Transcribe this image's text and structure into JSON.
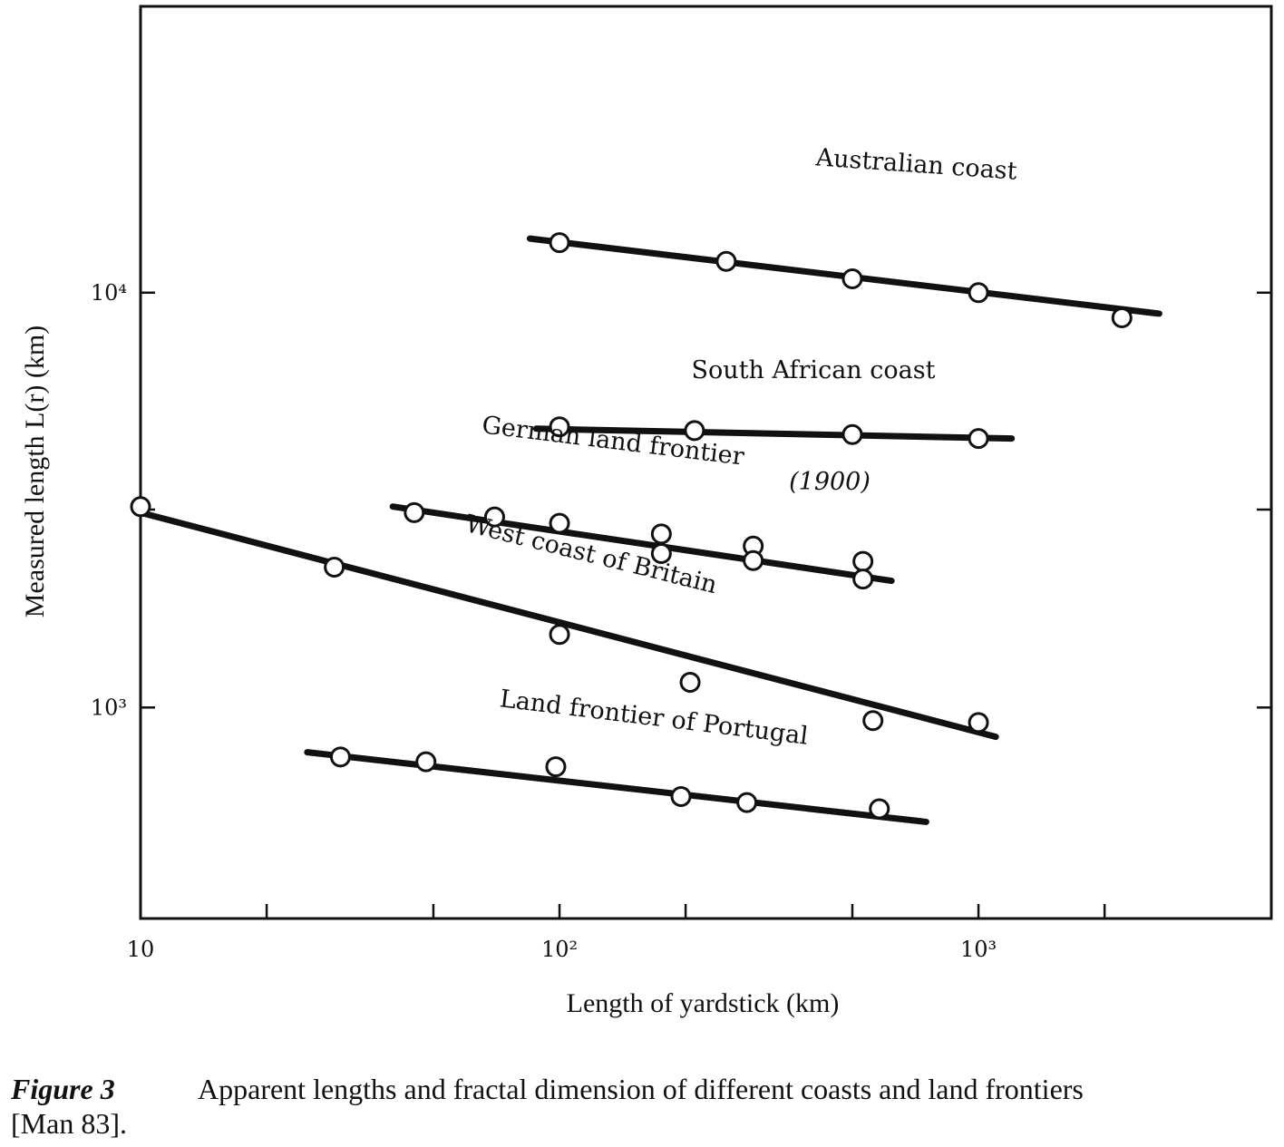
{
  "chart_data": {
    "type": "line",
    "xlabel": "Length of yardstick (km)",
    "ylabel": "Measured length L(r) (km)",
    "xscale": "log",
    "yscale": "log",
    "xlim": [
      10,
      5000
    ],
    "ylim": [
      310,
      49000
    ],
    "x_ticks": [
      10,
      20,
      50,
      100,
      200,
      500,
      1000,
      2000
    ],
    "x_tick_labels": [
      {
        "value": 10,
        "text": "10"
      },
      {
        "value": 100,
        "text": "10²"
      },
      {
        "value": 1000,
        "text": "10³"
      }
    ],
    "y_ticks": [
      1000,
      3000,
      10000
    ],
    "y_tick_labels": [
      {
        "value": 1000,
        "text": "10³"
      },
      {
        "value": 10000,
        "text": "10⁴"
      }
    ],
    "grid": false,
    "legend": "none",
    "series": [
      {
        "name": "Australian coast",
        "line": [
          [
            85,
            13500
          ],
          [
            2700,
            8900
          ]
        ],
        "points": [
          [
            100,
            13200
          ],
          [
            250,
            11900
          ],
          [
            500,
            10800
          ],
          [
            1000,
            10000
          ],
          [
            2200,
            8700
          ]
        ]
      },
      {
        "name": "South African coast",
        "line": [
          [
            88,
            4700
          ],
          [
            1200,
            4450
          ]
        ],
        "points": [
          [
            100,
            4750
          ],
          [
            210,
            4650
          ],
          [
            500,
            4550
          ],
          [
            1000,
            4450
          ]
        ]
      },
      {
        "name": "German land frontier",
        "line": [
          [
            40,
            3050
          ],
          [
            620,
            2020
          ]
        ],
        "points": [
          [
            45,
            2950
          ],
          [
            70,
            2880
          ],
          [
            100,
            2780
          ],
          [
            175,
            2620
          ],
          [
            175,
            2350
          ],
          [
            290,
            2450
          ],
          [
            290,
            2260
          ],
          [
            530,
            2250
          ],
          [
            530,
            2040
          ]
        ]
      },
      {
        "name": "West coast of Britain",
        "line": [
          [
            10,
            2950
          ],
          [
            1100,
            850
          ]
        ],
        "points": [
          [
            10,
            3050
          ],
          [
            29,
            2180
          ],
          [
            100,
            1500
          ],
          [
            205,
            1150
          ],
          [
            560,
            930
          ],
          [
            1000,
            920
          ]
        ]
      },
      {
        "name": "Land frontier of Portugal",
        "line": [
          [
            25,
            780
          ],
          [
            750,
            530
          ]
        ],
        "points": [
          [
            30,
            760
          ],
          [
            48,
            740
          ],
          [
            98,
            720
          ],
          [
            195,
            610
          ],
          [
            280,
            590
          ],
          [
            580,
            570
          ]
        ]
      }
    ],
    "annotations": [
      {
        "text": "(1900)",
        "near": "German land frontier"
      }
    ]
  },
  "caption": {
    "label": "Figure 3",
    "text": "Apparent lengths and fractal dimension of different coasts and land frontiers",
    "reference": "[Man 83]."
  }
}
